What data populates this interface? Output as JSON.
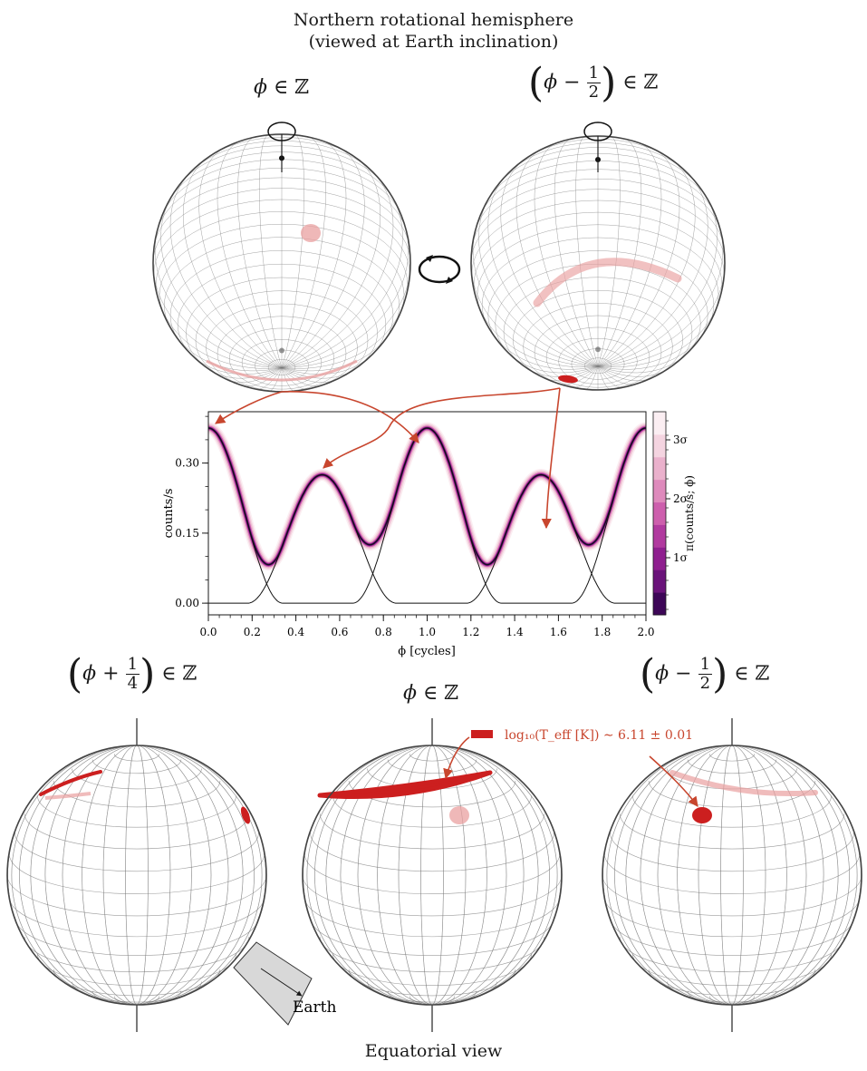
{
  "figure": {
    "title_line1": "Northern rotational hemisphere",
    "title_line2": "(viewed at Earth inclination)",
    "bottom_title": "Equatorial view"
  },
  "top_panels": [
    {
      "label_var": "ϕ",
      "label_rel": "∈ ℤ"
    },
    {
      "label_var": "ϕ −",
      "frac_num": "1",
      "frac_den": "2",
      "label_rel": "∈ ℤ"
    }
  ],
  "bottom_panels": [
    {
      "label_var": "ϕ +",
      "frac_num": "1",
      "frac_den": "4",
      "label_rel": "∈ ℤ"
    },
    {
      "label_var": "ϕ",
      "label_rel": "∈ ℤ"
    },
    {
      "label_var": "ϕ −",
      "frac_num": "1",
      "frac_den": "2",
      "label_rel": "∈ ℤ"
    }
  ],
  "annotations": {
    "earth_label": "Earth",
    "legend_text": "log₁₀(T_eff [K]) ∼ 6.11 ± 0.01"
  },
  "colors": {
    "hot_spot": "#cc1f1f",
    "faint_spot": "#e9a0a0",
    "arrow": "#c8462e",
    "grid": "#7a7a7a"
  },
  "chart_data": {
    "type": "line",
    "xlabel": "ϕ [cycles]",
    "ylabel": "counts/s",
    "xlim": [
      0.0,
      2.0
    ],
    "ylim": [
      -0.025,
      0.41
    ],
    "x_ticks": [
      "0.0",
      "0.2",
      "0.4",
      "0.6",
      "0.8",
      "1.0",
      "1.2",
      "1.4",
      "1.6",
      "1.8",
      "2.0"
    ],
    "y_ticks": [
      "0.00",
      "0.15",
      "0.30"
    ],
    "colorbar_label": "π(counts/s; ϕ)",
    "colorbar_ticks": [
      "1σ",
      "2σ",
      "3σ"
    ],
    "colorbar_colors": [
      "#3d0657",
      "#6a137a",
      "#8f1f8f",
      "#b13a9f",
      "#cd5fad",
      "#de8abc",
      "#eab1cc",
      "#f4d4e0",
      "#fbeef2"
    ],
    "components": {
      "primary_peak": 0.375,
      "primary_phase": 0.0,
      "secondary_peak": 0.275,
      "secondary_phase": 0.52,
      "pulse_halfwidth": 0.34
    }
  }
}
